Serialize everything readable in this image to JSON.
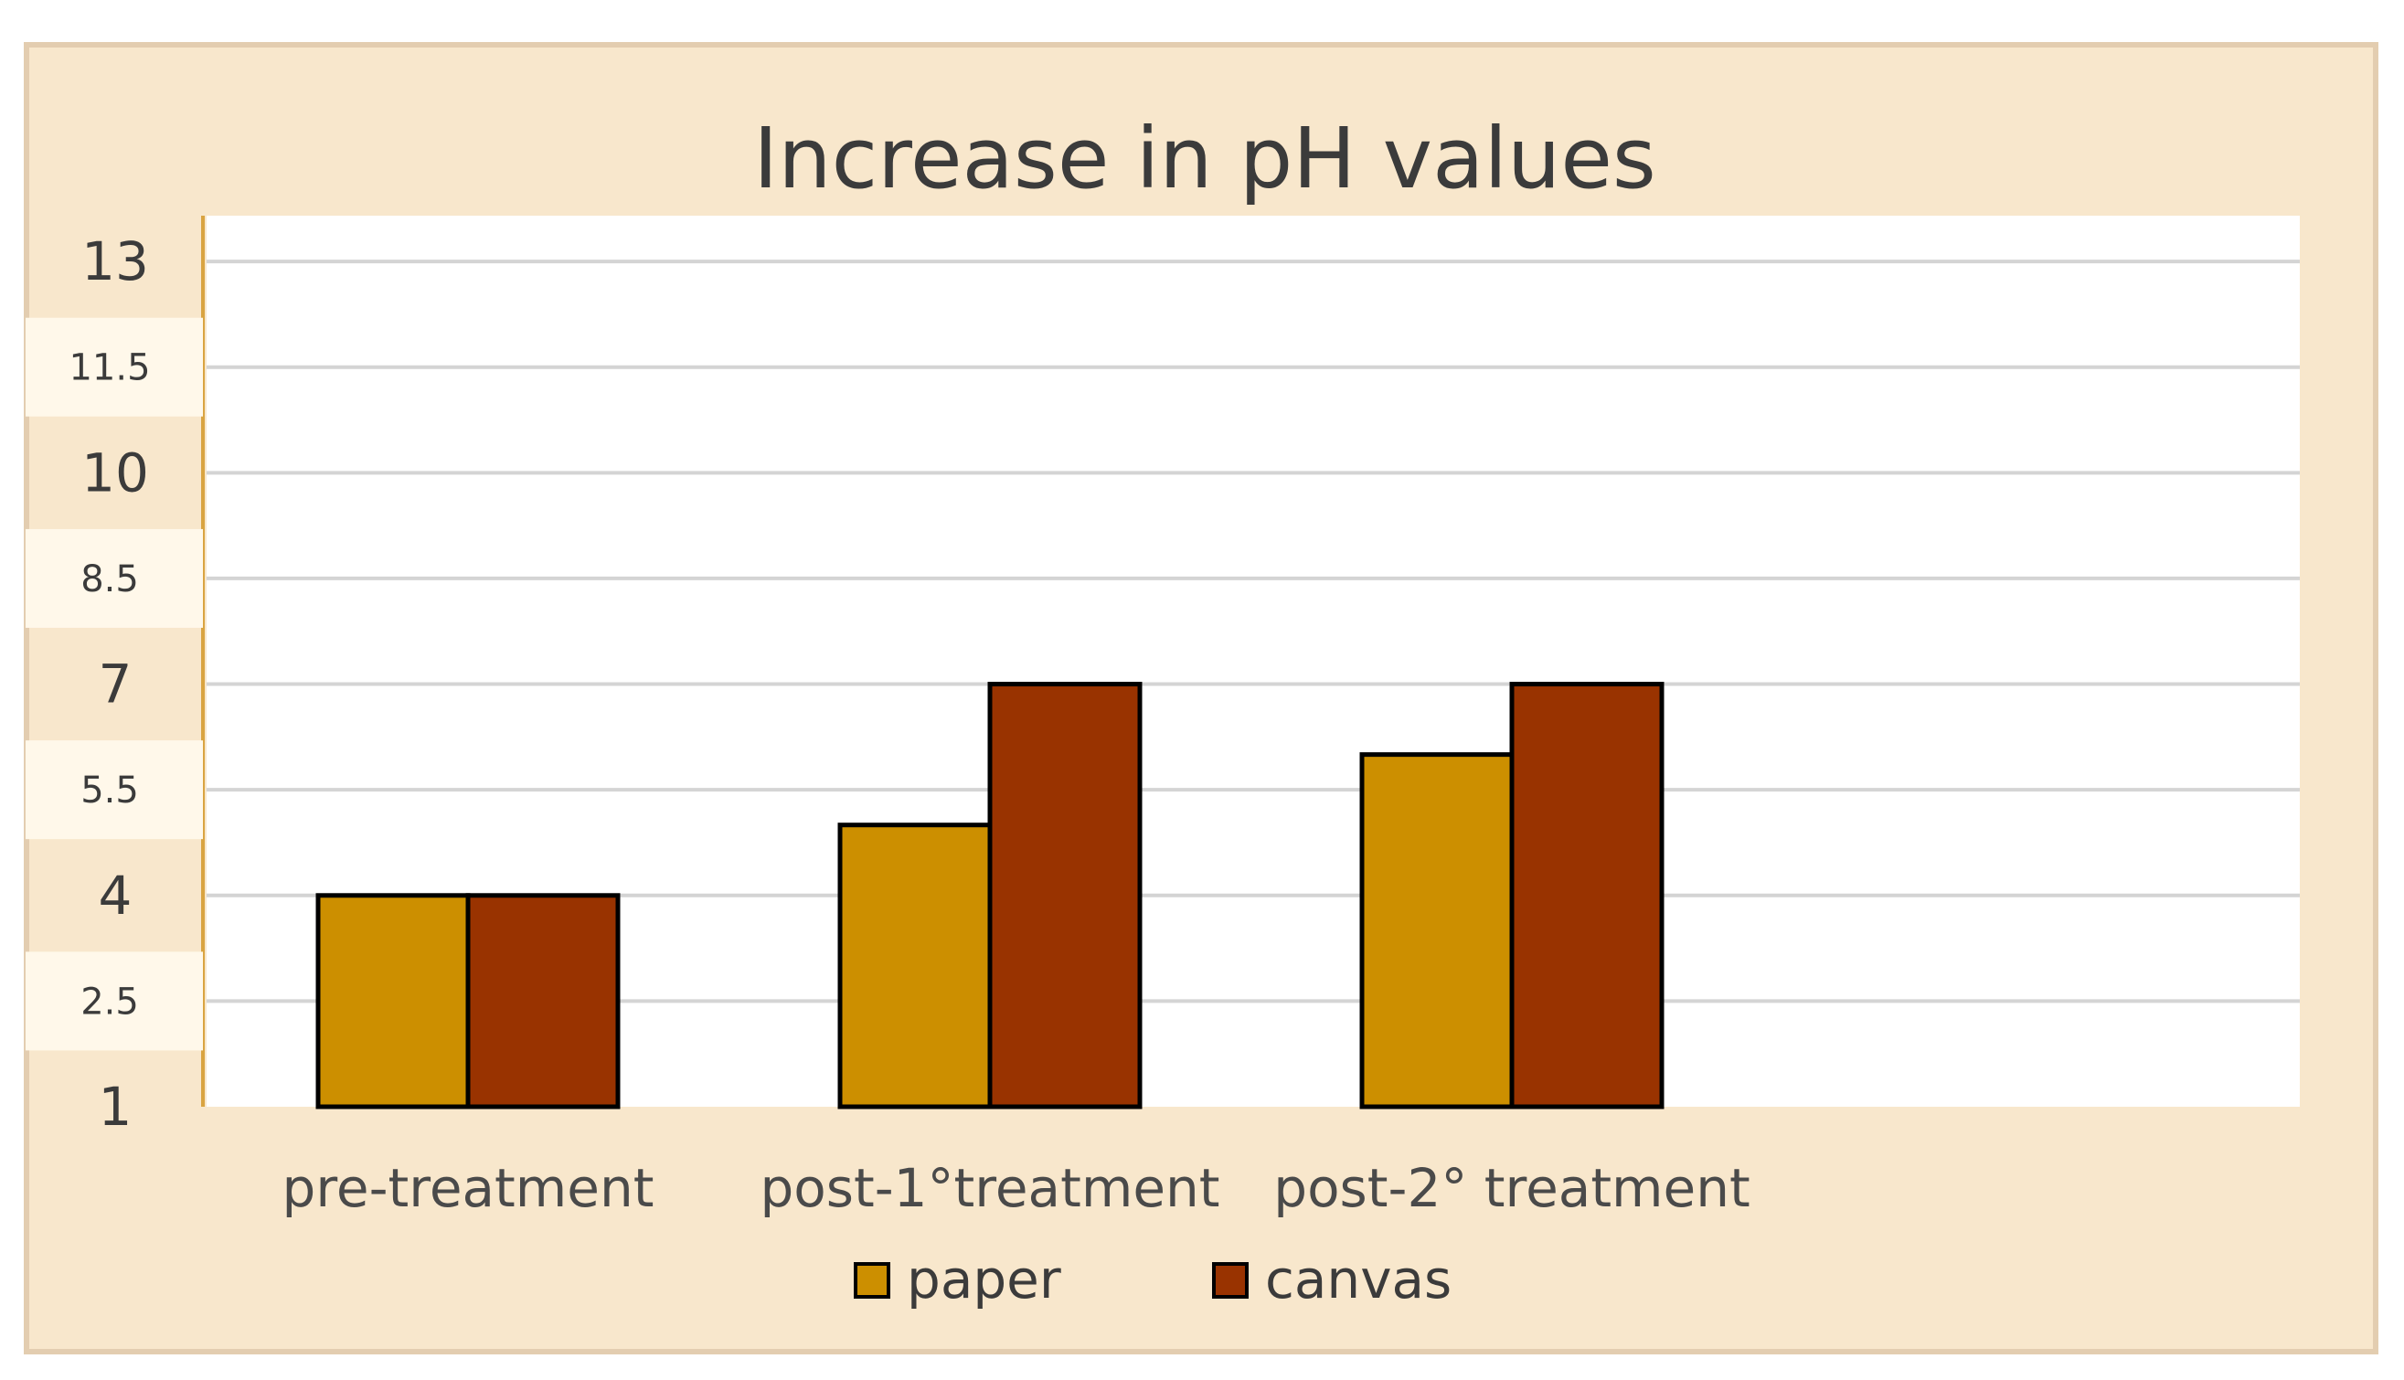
{
  "chart_data": {
    "type": "bar",
    "title": "Increase in pH values",
    "xlabel": "",
    "ylabel": "",
    "categories": [
      "pre-treatment",
      "post-1°treatment",
      "post-2° treatment"
    ],
    "series": [
      {
        "name": "paper",
        "values": [
          4,
          5,
          6
        ]
      },
      {
        "name": "canvas",
        "values": [
          4,
          7,
          7
        ]
      }
    ],
    "ylim": [
      1,
      13
    ],
    "yticks": [
      "1",
      "2.5",
      "4",
      "5.5",
      "7",
      "8.5",
      "10",
      "11.5",
      "13"
    ],
    "grid": true,
    "legend_position": "bottom",
    "colors": {
      "paper": "#cc8f00",
      "canvas": "#993300"
    }
  }
}
